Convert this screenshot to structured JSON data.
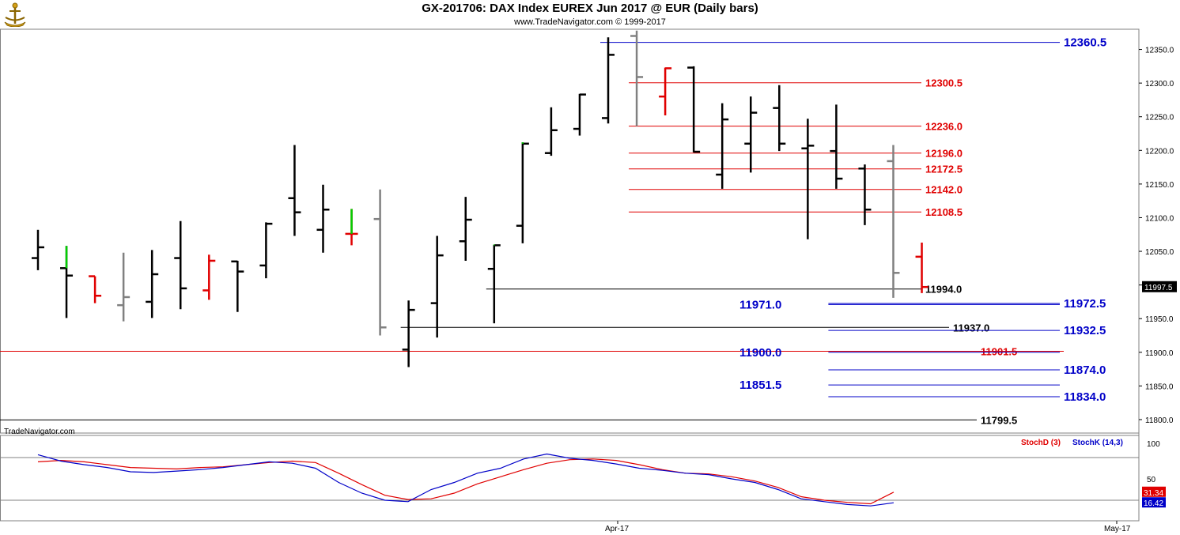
{
  "header": {
    "title": "GX-201706:  DAX Index EUREX Jun 2017 @ EUR  (Daily bars)",
    "subtitle": "www.TradeNavigator.com © 1999-2017",
    "brand": "TradeNavigator.com"
  },
  "colors": {
    "up": "#000000",
    "gray": "#808080",
    "red": "#e00000",
    "green": "#00d000",
    "blue": "#0000c8"
  },
  "chart_data": {
    "type": "ohlc",
    "ylim": [
      11780,
      12380
    ],
    "y_ticks": [
      "12350.0",
      "12300.0",
      "12250.0",
      "12200.0",
      "12150.0",
      "12100.0",
      "12050.0",
      "12000.0",
      "11950.0",
      "11900.0",
      "11850.0",
      "11800.0"
    ],
    "x_tick_labels": [
      {
        "label": "Apr-17",
        "index": 20
      },
      {
        "label": "May-17",
        "index": 38
      }
    ],
    "last_price": "11997.5",
    "bars": [
      {
        "o": 12040,
        "h": 12082,
        "l": 12022,
        "c": 12056,
        "color": "black"
      },
      {
        "o": 12025,
        "h": 12058,
        "l": 11951,
        "c": 12014,
        "color": "black",
        "tick": "green"
      },
      {
        "o": 12013,
        "h": 12013,
        "l": 11973,
        "c": 11984,
        "color": "red"
      },
      {
        "o": 11970,
        "h": 12048,
        "l": 11946,
        "c": 11982,
        "color": "gray"
      },
      {
        "o": 11975,
        "h": 12052,
        "l": 11951,
        "c": 12016,
        "color": "black"
      },
      {
        "o": 12040,
        "h": 12095,
        "l": 11964,
        "c": 11995,
        "color": "black"
      },
      {
        "o": 11992,
        "h": 12045,
        "l": 11978,
        "c": 12036,
        "color": "red"
      },
      {
        "o": 12035,
        "h": 12036,
        "l": 11960,
        "c": 12020,
        "color": "black"
      },
      {
        "o": 12029,
        "h": 12093,
        "l": 12010,
        "c": 12091,
        "color": "black"
      },
      {
        "o": 12129,
        "h": 12208,
        "l": 12073,
        "c": 12108,
        "color": "black"
      },
      {
        "o": 12082,
        "h": 12149,
        "l": 12048,
        "c": 12112,
        "color": "black"
      },
      {
        "o": 12076,
        "h": 12113,
        "l": 12059,
        "c": 12076,
        "color": "red",
        "tick": "green"
      },
      {
        "o": 12098,
        "h": 12142,
        "l": 11925,
        "c": 11937,
        "color": "gray"
      },
      {
        "o": 11904,
        "h": 11977,
        "l": 11878,
        "c": 11963,
        "color": "black"
      },
      {
        "o": 11973,
        "h": 12073,
        "l": 11922,
        "c": 12044,
        "color": "black"
      },
      {
        "o": 12065,
        "h": 12131,
        "l": 12036,
        "c": 12097,
        "color": "black"
      },
      {
        "o": 12024,
        "h": 12060,
        "l": 11943,
        "c": 12059,
        "color": "black",
        "tick": "green"
      },
      {
        "o": 12088,
        "h": 12212,
        "l": 12062,
        "c": 12210,
        "color": "black",
        "tick": "green"
      },
      {
        "o": 12196,
        "h": 12264,
        "l": 12192,
        "c": 12230,
        "color": "black"
      },
      {
        "o": 12232,
        "h": 12284,
        "l": 12222,
        "c": 12283,
        "color": "black"
      },
      {
        "o": 12248,
        "h": 12368,
        "l": 12240,
        "c": 12342,
        "color": "black"
      },
      {
        "o": 12370,
        "h": 12378,
        "l": 12236,
        "c": 12309,
        "color": "gray"
      },
      {
        "o": 12280,
        "h": 12323,
        "l": 12252,
        "c": 12322,
        "color": "red"
      },
      {
        "o": 12323,
        "h": 12325,
        "l": 12197,
        "c": 12198,
        "color": "black"
      },
      {
        "o": 12164,
        "h": 12270,
        "l": 12143,
        "c": 12246,
        "color": "black"
      },
      {
        "o": 12210,
        "h": 12280,
        "l": 12167,
        "c": 12256,
        "color": "black"
      },
      {
        "o": 12263,
        "h": 12297,
        "l": 12199,
        "c": 12210,
        "color": "black"
      },
      {
        "o": 12203,
        "h": 12247,
        "l": 12068,
        "c": 12207,
        "color": "black"
      },
      {
        "o": 12199,
        "h": 12268,
        "l": 12143,
        "c": 12158,
        "color": "black"
      },
      {
        "o": 12173,
        "h": 12179,
        "l": 12089,
        "c": 12112,
        "color": "black"
      },
      {
        "o": 12184,
        "h": 12208,
        "l": 11981,
        "c": 12018,
        "color": "gray"
      },
      {
        "o": 12042,
        "h": 12063,
        "l": 11988,
        "c": 11997,
        "color": "red"
      }
    ],
    "levels": [
      {
        "price": 12360.5,
        "label": "12360.5",
        "color": "blue",
        "from_index": 20
      },
      {
        "price": 12300.5,
        "label": "12300.5",
        "color": "red",
        "from_index": 21
      },
      {
        "price": 12236.0,
        "label": "12236.0",
        "color": "red",
        "from_index": 21
      },
      {
        "price": 12196.0,
        "label": "12196.0",
        "color": "red",
        "from_index": 21
      },
      {
        "price": 12172.5,
        "label": "12172.5",
        "color": "red",
        "from_index": 21
      },
      {
        "price": 12142.0,
        "label": "12142.0",
        "color": "red",
        "from_index": 21
      },
      {
        "price": 12108.5,
        "label": "12108.5",
        "color": "red",
        "from_index": 21
      },
      {
        "price": 11994.0,
        "label": "11994.0",
        "color": "black",
        "from_index": 16
      },
      {
        "price": 11972.5,
        "label": "11972.5",
        "color": "blue",
        "from_index": 28
      },
      {
        "price": 11971.0,
        "label": "11971.0",
        "color": "blue",
        "from_index": 28
      },
      {
        "price": 11937.0,
        "label": "11937.0",
        "color": "black",
        "from_index": 13
      },
      {
        "price": 11932.5,
        "label": "11932.5",
        "color": "blue",
        "from_index": 28
      },
      {
        "price": 11901.5,
        "label": "11901.5",
        "color": "red",
        "from_index": 0
      },
      {
        "price": 11900.0,
        "label": "11900.0",
        "color": "blue",
        "from_index": 28
      },
      {
        "price": 11874.0,
        "label": "11874.0",
        "color": "blue",
        "from_index": 28
      },
      {
        "price": 11851.5,
        "label": "11851.5",
        "color": "blue",
        "from_index": 28
      },
      {
        "price": 11834.0,
        "label": "11834.0",
        "color": "blue",
        "from_index": 28
      },
      {
        "price": 11799.5,
        "label": "11799.5",
        "color": "black",
        "from_index": 0
      }
    ],
    "stochastic": {
      "ylim": [
        0,
        100
      ],
      "y_ticks": [
        "100",
        "50"
      ],
      "ref_levels": [
        80,
        20
      ],
      "series": [
        {
          "name": "StochD (3)",
          "color": "red",
          "last": "31.34",
          "values": [
            74,
            76,
            74,
            70,
            66,
            65,
            64,
            66,
            67,
            70,
            73,
            75,
            73,
            58,
            42,
            27,
            21,
            22,
            30,
            43,
            53,
            63,
            72,
            77,
            78,
            76,
            70,
            63,
            58,
            57,
            53,
            47,
            38,
            25,
            20,
            17,
            15,
            31.34
          ]
        },
        {
          "name": "StochK (14,3)",
          "color": "blue",
          "last": "16.42",
          "values": [
            84,
            75,
            70,
            66,
            60,
            59,
            61,
            63,
            66,
            70,
            74,
            72,
            65,
            45,
            30,
            20,
            18,
            35,
            45,
            58,
            65,
            78,
            85,
            79,
            76,
            71,
            65,
            62,
            58,
            56,
            50,
            45,
            35,
            22,
            18,
            14,
            12,
            16.42
          ]
        }
      ]
    }
  }
}
